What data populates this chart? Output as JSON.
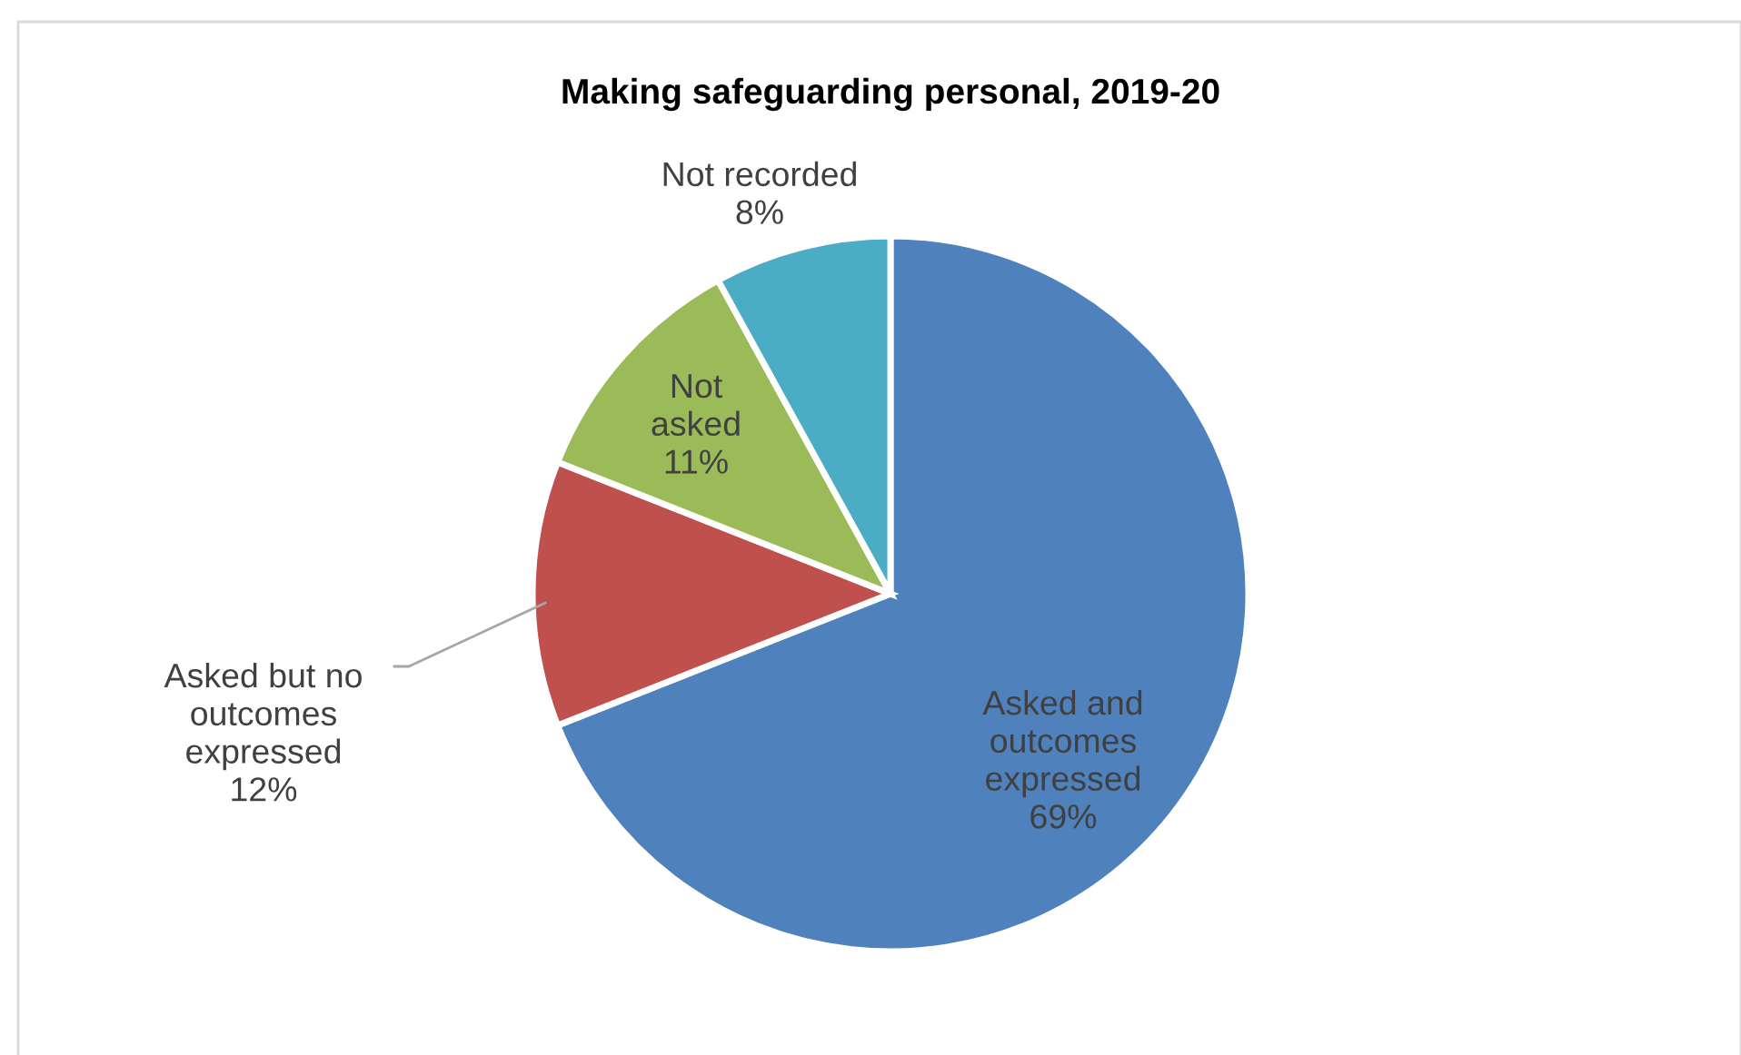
{
  "chart_data": {
    "type": "pie",
    "title": "Making safeguarding personal, 2019-20",
    "categories": [
      "Asked and outcomes expressed",
      "Asked but no outcomes expressed",
      "Not asked",
      "Not recorded"
    ],
    "values": [
      69,
      12,
      11,
      8
    ],
    "value_labels": [
      "69%",
      "12%",
      "11%",
      "8%"
    ],
    "colors": [
      "#4f81bd",
      "#c0504d",
      "#9bbb59",
      "#4bacc6"
    ],
    "legend": false
  }
}
